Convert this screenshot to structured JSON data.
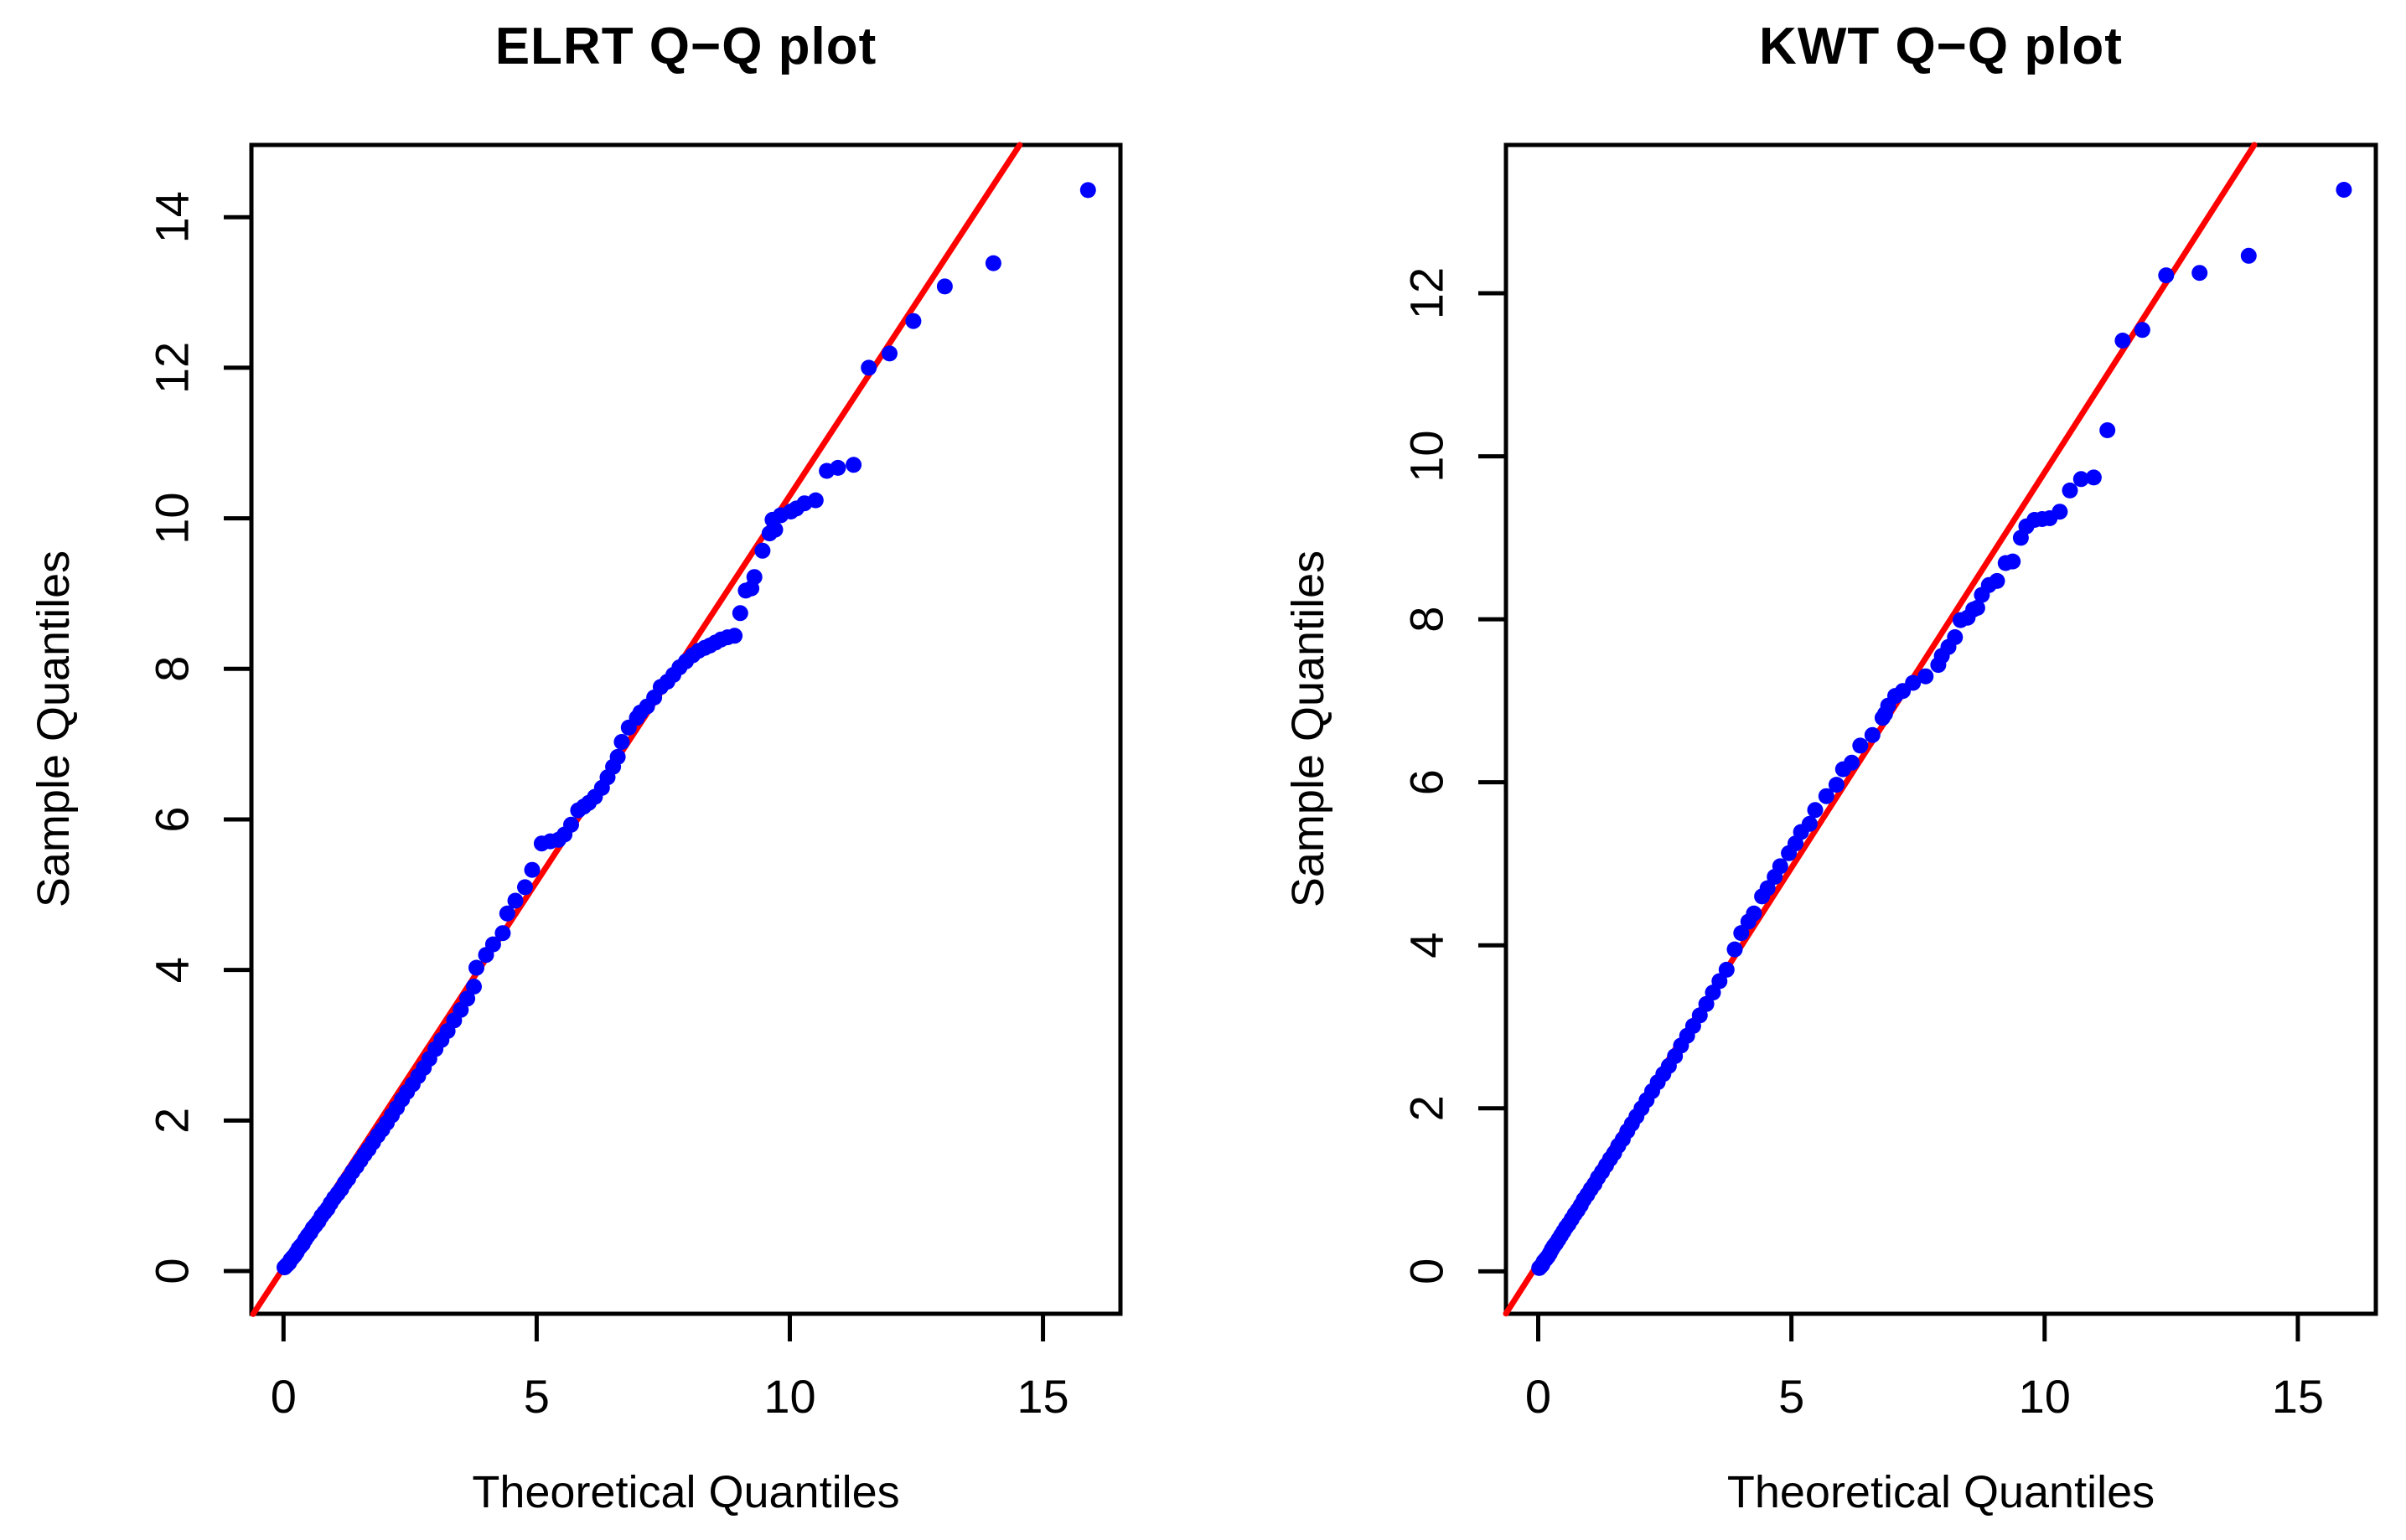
{
  "figure": {
    "background": "#ffffff",
    "foreground": "#000000"
  },
  "chart_data": [
    {
      "type": "scatter",
      "title": "ELRT Q−Q plot",
      "xlabel": "Theoretical Quantiles",
      "ylabel": "Sample Quantiles",
      "x_ticks": [
        0,
        5,
        10,
        15
      ],
      "y_ticks": [
        0,
        2,
        4,
        6,
        8,
        10,
        12,
        14
      ],
      "xlim": [
        -0.634,
        16.53
      ],
      "ylim": [
        -0.567,
        14.96
      ],
      "grid": "off",
      "legend": "none",
      "point_color": "#0000ff",
      "line_color": "#ff0000",
      "ref_line": [
        [
          -0.6,
          -0.571
        ],
        [
          14.54,
          14.96
        ]
      ],
      "points": [
        [
          15.89,
          14.36
        ],
        [
          14.02,
          13.39
        ],
        [
          13.06,
          13.08
        ],
        [
          12.44,
          12.62
        ],
        [
          11.97,
          12.19
        ],
        [
          11.56,
          12.0
        ],
        [
          11.26,
          10.71
        ],
        [
          10.95,
          10.67
        ],
        [
          10.73,
          10.63
        ],
        [
          10.51,
          10.24
        ],
        [
          10.29,
          10.2
        ],
        [
          10.13,
          10.13
        ],
        [
          10.02,
          10.09
        ],
        [
          9.82,
          10.04
        ],
        [
          9.71,
          9.85
        ],
        [
          9.66,
          9.98
        ],
        [
          9.6,
          9.8
        ],
        [
          9.46,
          9.57
        ],
        [
          9.3,
          9.22
        ],
        [
          9.24,
          9.07
        ],
        [
          9.13,
          9.04
        ],
        [
          9.02,
          8.74
        ],
        [
          8.91,
          8.44
        ],
        [
          8.77,
          8.42
        ],
        [
          8.64,
          8.39
        ],
        [
          8.53,
          8.35
        ],
        [
          8.42,
          8.31
        ],
        [
          8.32,
          8.28
        ],
        [
          8.2,
          8.24
        ],
        [
          8.08,
          8.18
        ],
        [
          7.95,
          8.1
        ],
        [
          7.82,
          8.02
        ],
        [
          7.7,
          7.92
        ],
        [
          7.58,
          7.83
        ],
        [
          7.45,
          7.76
        ],
        [
          7.32,
          7.62
        ],
        [
          7.18,
          7.5
        ],
        [
          7.05,
          7.42
        ],
        [
          6.98,
          7.35
        ],
        [
          6.82,
          7.22
        ],
        [
          6.68,
          7.03
        ],
        [
          6.6,
          6.83
        ],
        [
          6.51,
          6.7
        ],
        [
          6.4,
          6.56
        ],
        [
          6.29,
          6.42
        ],
        [
          6.15,
          6.3
        ],
        [
          6.03,
          6.22
        ],
        [
          5.93,
          6.17
        ],
        [
          5.82,
          6.12
        ],
        [
          5.68,
          5.93
        ],
        [
          5.55,
          5.8
        ],
        [
          5.43,
          5.73
        ],
        [
          5.27,
          5.71
        ],
        [
          5.1,
          5.68
        ],
        [
          4.91,
          5.33
        ],
        [
          4.77,
          5.1
        ],
        [
          4.58,
          4.92
        ],
        [
          4.42,
          4.75
        ],
        [
          4.33,
          4.49
        ],
        [
          4.14,
          4.34
        ],
        [
          4.0,
          4.2
        ],
        [
          3.81,
          4.03
        ],
        [
          3.76,
          3.78
        ],
        [
          3.63,
          3.62
        ],
        [
          3.5,
          3.47
        ],
        [
          3.37,
          3.33
        ],
        [
          3.24,
          3.19
        ],
        [
          3.12,
          3.07
        ],
        [
          3.0,
          2.95
        ],
        [
          2.88,
          2.82
        ],
        [
          2.77,
          2.7
        ],
        [
          2.66,
          2.59
        ],
        [
          2.55,
          2.48
        ],
        [
          2.44,
          2.38
        ],
        [
          2.34,
          2.28
        ],
        [
          2.24,
          2.17
        ],
        [
          2.14,
          2.07
        ],
        [
          2.04,
          1.97
        ],
        [
          1.95,
          1.88
        ],
        [
          1.86,
          1.8
        ],
        [
          1.77,
          1.71
        ],
        [
          1.68,
          1.62
        ],
        [
          1.6,
          1.55
        ],
        [
          1.52,
          1.47
        ],
        [
          1.44,
          1.39
        ],
        [
          1.36,
          1.32
        ],
        [
          1.28,
          1.23
        ],
        [
          1.21,
          1.17
        ],
        [
          1.14,
          1.09
        ],
        [
          1.07,
          1.03
        ],
        [
          1.0,
          0.97
        ],
        [
          0.93,
          0.9
        ],
        [
          0.87,
          0.83
        ],
        [
          0.81,
          0.78
        ],
        [
          0.75,
          0.73
        ],
        [
          0.69,
          0.66
        ],
        [
          0.63,
          0.61
        ],
        [
          0.58,
          0.57
        ],
        [
          0.53,
          0.51
        ],
        [
          0.48,
          0.47
        ],
        [
          0.43,
          0.42
        ],
        [
          0.38,
          0.36
        ],
        [
          0.34,
          0.33
        ],
        [
          0.3,
          0.3
        ],
        [
          0.26,
          0.25
        ],
        [
          0.22,
          0.21
        ],
        [
          0.18,
          0.18
        ],
        [
          0.14,
          0.15
        ],
        [
          0.11,
          0.11
        ],
        [
          0.08,
          0.09
        ],
        [
          0.05,
          0.07
        ],
        [
          0.02,
          0.05
        ]
      ]
    },
    {
      "type": "scatter",
      "title": "KWT Q−Q plot",
      "xlabel": "Theoretical Quantiles",
      "ylabel": "Sample Quantiles",
      "x_ticks": [
        0,
        5,
        10,
        15
      ],
      "y_ticks": [
        0,
        2,
        4,
        6,
        8,
        10,
        12
      ],
      "xlim": [
        -0.637,
        16.54
      ],
      "ylim": [
        -0.521,
        13.82
      ],
      "grid": "off",
      "legend": "none",
      "point_color": "#0000ff",
      "line_color": "#ff0000",
      "ref_line": [
        [
          -0.637,
          -0.518
        ],
        [
          14.14,
          13.82
        ]
      ],
      "points": [
        [
          15.91,
          13.27
        ],
        [
          14.03,
          12.46
        ],
        [
          13.06,
          12.25
        ],
        [
          12.4,
          12.22
        ],
        [
          11.93,
          11.55
        ],
        [
          11.54,
          11.42
        ],
        [
          11.24,
          10.32
        ],
        [
          10.97,
          9.74
        ],
        [
          10.72,
          9.72
        ],
        [
          10.5,
          9.58
        ],
        [
          10.3,
          9.32
        ],
        [
          10.1,
          9.24
        ],
        [
          9.95,
          9.23
        ],
        [
          9.8,
          9.22
        ],
        [
          9.64,
          9.14
        ],
        [
          9.53,
          9.0
        ],
        [
          9.37,
          8.71
        ],
        [
          9.23,
          8.69
        ],
        [
          9.06,
          8.47
        ],
        [
          8.9,
          8.42
        ],
        [
          8.76,
          8.3
        ],
        [
          8.67,
          8.14
        ],
        [
          8.59,
          8.12
        ],
        [
          8.48,
          8.02
        ],
        [
          8.34,
          7.99
        ],
        [
          8.23,
          7.78
        ],
        [
          8.1,
          7.66
        ],
        [
          7.97,
          7.55
        ],
        [
          7.9,
          7.44
        ],
        [
          7.65,
          7.3
        ],
        [
          7.4,
          7.22
        ],
        [
          7.2,
          7.12
        ],
        [
          7.05,
          7.06
        ],
        [
          6.91,
          6.94
        ],
        [
          6.85,
          6.84
        ],
        [
          6.8,
          6.79
        ],
        [
          6.6,
          6.58
        ],
        [
          6.36,
          6.45
        ],
        [
          6.19,
          6.24
        ],
        [
          6.02,
          6.16
        ],
        [
          5.89,
          5.97
        ],
        [
          5.69,
          5.83
        ],
        [
          5.47,
          5.66
        ],
        [
          5.36,
          5.49
        ],
        [
          5.19,
          5.39
        ],
        [
          5.08,
          5.25
        ],
        [
          4.95,
          5.13
        ],
        [
          4.78,
          4.97
        ],
        [
          4.67,
          4.84
        ],
        [
          4.53,
          4.7
        ],
        [
          4.42,
          4.6
        ],
        [
          4.26,
          4.39
        ],
        [
          4.15,
          4.29
        ],
        [
          4.01,
          4.15
        ],
        [
          3.88,
          3.95
        ],
        [
          3.72,
          3.7
        ],
        [
          3.58,
          3.56
        ],
        [
          3.45,
          3.42
        ],
        [
          3.32,
          3.28
        ],
        [
          3.19,
          3.14
        ],
        [
          3.06,
          3.01
        ],
        [
          2.94,
          2.89
        ],
        [
          2.82,
          2.77
        ],
        [
          2.7,
          2.64
        ],
        [
          2.58,
          2.52
        ],
        [
          2.47,
          2.42
        ],
        [
          2.36,
          2.32
        ],
        [
          2.25,
          2.21
        ],
        [
          2.14,
          2.1
        ],
        [
          2.04,
          2.0
        ],
        [
          1.94,
          1.9
        ],
        [
          1.85,
          1.81
        ],
        [
          1.76,
          1.72
        ],
        [
          1.67,
          1.62
        ],
        [
          1.58,
          1.54
        ],
        [
          1.5,
          1.45
        ],
        [
          1.42,
          1.38
        ],
        [
          1.34,
          1.3
        ],
        [
          1.26,
          1.22
        ],
        [
          1.18,
          1.15
        ],
        [
          1.11,
          1.07
        ],
        [
          1.04,
          1.01
        ],
        [
          0.97,
          0.94
        ],
        [
          0.9,
          0.88
        ],
        [
          0.84,
          0.81
        ],
        [
          0.78,
          0.75
        ],
        [
          0.72,
          0.7
        ],
        [
          0.66,
          0.64
        ],
        [
          0.6,
          0.58
        ],
        [
          0.55,
          0.54
        ],
        [
          0.5,
          0.49
        ],
        [
          0.45,
          0.44
        ],
        [
          0.4,
          0.39
        ],
        [
          0.35,
          0.34
        ],
        [
          0.31,
          0.31
        ],
        [
          0.27,
          0.27
        ],
        [
          0.23,
          0.22
        ],
        [
          0.19,
          0.18
        ],
        [
          0.15,
          0.15
        ],
        [
          0.11,
          0.12
        ],
        [
          0.08,
          0.08
        ],
        [
          0.05,
          0.06
        ],
        [
          0.02,
          0.04
        ]
      ]
    }
  ]
}
